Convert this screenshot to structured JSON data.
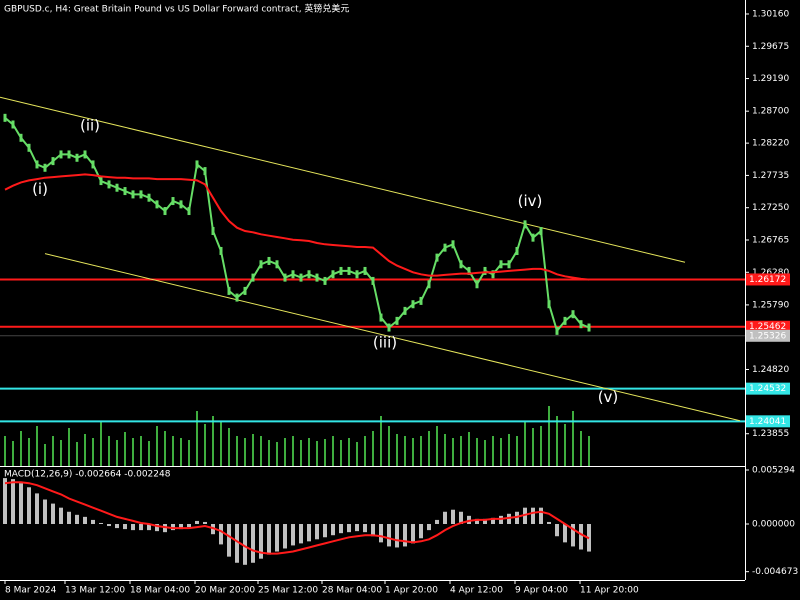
{
  "chart_data": [
    {
      "type": "line",
      "title": "GBPUSD.c, H4:  Great Britain Pound vs US Dollar Forward contract, 英镑兑美元",
      "xlim": [
        -0.625,
        92.5
      ],
      "xticks": [
        {
          "value": 0,
          "label": "8 Mar 2024"
        },
        {
          "value": 7.5,
          "label": "13 Mar 12:00"
        },
        {
          "value": 15.625,
          "label": "18 Mar 04:00"
        },
        {
          "value": 23.75,
          "label": "20 Mar 20:00"
        },
        {
          "value": 31.625,
          "label": "25 Mar 12:00"
        },
        {
          "value": 39.625,
          "label": "28 Mar 04:00"
        },
        {
          "value": 47.5,
          "label": "1 Apr 20:00"
        },
        {
          "value": 55.625,
          "label": "4 Apr 12:00"
        },
        {
          "value": 63.75,
          "label": "9 Apr 04:00"
        },
        {
          "value": 71.875,
          "label": "11 Apr 20:00"
        }
      ],
      "ylim": [
        1.2337,
        1.3037
      ],
      "yticks": [
        {
          "value": 1.3016,
          "label": "1.30160"
        },
        1.29675,
        {
          "value": 1.2919,
          "label": "1.29190"
        },
        {
          "value": 1.287,
          "label": "1.28700"
        },
        {
          "value": 1.2822,
          "label": "1.28220"
        },
        1.27735,
        {
          "value": 1.2725,
          "label": "1.27250"
        },
        1.26765,
        {
          "value": 1.2628,
          "label": "1.26280"
        },
        {
          "value": 1.2579,
          "label": "1.25790"
        },
        {
          "value": 1.2482,
          "label": "1.24820"
        },
        1.23855
      ],
      "series": [
        {
          "color": "#66dd66",
          "values": [
            1.286,
            1.285,
            1.283,
            1.2815,
            1.279,
            1.2785,
            1.2795,
            1.2805,
            1.2805,
            1.28,
            1.2805,
            1.279,
            1.2765,
            1.276,
            1.2755,
            1.275,
            1.2745,
            1.2745,
            1.274,
            1.273,
            1.272,
            1.2735,
            1.273,
            1.272,
            1.279,
            1.278,
            1.269,
            1.266,
            1.26,
            1.259,
            1.26,
            1.262,
            1.264,
            1.2645,
            1.264,
            1.262,
            1.2625,
            1.262,
            1.2625,
            1.262,
            1.2615,
            1.2625,
            1.263,
            1.263,
            1.2625,
            1.263,
            1.2615,
            1.256,
            1.2545,
            1.2555,
            1.257,
            1.258,
            1.2585,
            1.261,
            1.265,
            1.2665,
            1.267,
            1.264,
            1.263,
            1.261,
            1.263,
            1.2625,
            1.264,
            1.264,
            1.266,
            1.27,
            1.268,
            1.269,
            1.258,
            1.254,
            1.2555,
            1.2565,
            1.255,
            1.2545
          ]
        },
        {
          "color": "#ff1a1a",
          "values": [
            1.2752,
            1.2758,
            1.2763,
            1.2766,
            1.2768,
            1.277,
            1.2771,
            1.2772,
            1.2773,
            1.2774,
            1.2775,
            1.2774,
            1.2772,
            1.2771,
            1.277,
            1.277,
            1.2769,
            1.2769,
            1.2769,
            1.2768,
            1.2768,
            1.2768,
            1.2768,
            1.2767,
            1.2766,
            1.276,
            1.274,
            1.272,
            1.2705,
            1.2695,
            1.269,
            1.2688,
            1.2685,
            1.2683,
            1.2681,
            1.2679,
            1.2677,
            1.2676,
            1.2675,
            1.2672,
            1.267,
            1.2669,
            1.2668,
            1.2667,
            1.2666,
            1.2666,
            1.2665,
            1.2655,
            1.2645,
            1.2638,
            1.2633,
            1.2628,
            1.2625,
            1.2623,
            1.2623,
            1.2624,
            1.2625,
            1.2626,
            1.2626,
            1.2627,
            1.2628,
            1.2628,
            1.2629,
            1.263,
            1.2631,
            1.2632,
            1.2633,
            1.2633,
            1.263,
            1.2625,
            1.2622,
            1.262,
            1.2618,
            1.2617
          ]
        }
      ],
      "volume": {
        "color": "#3fae3f",
        "values": [
          30,
          25,
          35,
          28,
          40,
          22,
          30,
          26,
          38,
          24,
          32,
          28,
          45,
          30,
          26,
          34,
          28,
          30,
          25,
          40,
          35,
          30,
          28,
          26,
          55,
          42,
          50,
          45,
          38,
          30,
          28,
          32,
          30,
          26,
          24,
          28,
          30,
          26,
          28,
          25,
          27,
          30,
          26,
          28,
          24,
          30,
          35,
          50,
          40,
          32,
          30,
          28,
          30,
          35,
          40,
          32,
          28,
          30,
          34,
          28,
          26,
          30,
          28,
          32,
          30,
          45,
          38,
          40,
          60,
          50,
          42,
          55,
          35,
          30
        ]
      },
      "trendlines": [
        {
          "color": "#e6e65c",
          "x": [
            -0.625,
            85
          ],
          "y": [
            1.2891,
            1.2643
          ]
        },
        {
          "color": "#e6e65c",
          "x": [
            5,
            91.875
          ],
          "y": [
            1.2656,
            1.2405
          ]
        }
      ],
      "levels": [
        {
          "value": 1.26172,
          "color": "#ff1a1a"
        },
        {
          "value": 1.25462,
          "color": "#ff1a1a"
        },
        {
          "value": 1.24532,
          "color": "#33e6e6"
        },
        {
          "value": 1.24041,
          "color": "#33e6e6"
        }
      ],
      "last_price": {
        "value": 1.25326,
        "color": "#c0c0c0"
      },
      "annotations": [
        {
          "text": "(i)",
          "x": 4.375,
          "y": 1.2752
        },
        {
          "text": "(ii)",
          "x": 10.625,
          "y": 1.2848
        },
        {
          "text": "(iii)",
          "x": 47.5,
          "y": 1.2522
        },
        {
          "text": "(iv)",
          "x": 65.625,
          "y": 1.2734
        },
        {
          "text": "(v)",
          "x": 75.375,
          "y": 1.244
        }
      ]
    },
    {
      "type": "bar",
      "title": "MACD(12,26,9) -0.002664 -0.002248",
      "xlim": [
        -0.625,
        92.5
      ],
      "ylim": [
        -0.00549,
        0.00549
      ],
      "yticks": [
        0.005294,
        {
          "value": 0,
          "label": "0.000000"
        },
        -0.004673
      ],
      "series": [
        {
          "color": "#c0c0c0",
          "values": [
            0.0045,
            0.0044,
            0.004,
            0.0036,
            0.003,
            0.0024,
            0.002,
            0.0016,
            0.0012,
            0.0009,
            0.0007,
            0.0004,
            0.0001,
            -0.0002,
            -0.0004,
            -0.0005,
            -0.0006,
            -0.0006,
            -0.0006,
            -0.0007,
            -0.0008,
            -0.0006,
            -0.0005,
            -0.0003,
            0.0003,
            0.0002,
            -0.001,
            -0.002,
            -0.0032,
            -0.0038,
            -0.004,
            -0.0038,
            -0.0034,
            -0.003,
            -0.0027,
            -0.0024,
            -0.0021,
            -0.0019,
            -0.0017,
            -0.0015,
            -0.0013,
            -0.0011,
            -0.0009,
            -0.0008,
            -0.0007,
            -0.0008,
            -0.0012,
            -0.0018,
            -0.0022,
            -0.0023,
            -0.0022,
            -0.0019,
            -0.0014,
            -0.0006,
            0.0004,
            0.0012,
            0.0014,
            0.0012,
            0.0008,
            0.0005,
            0.0005,
            0.0006,
            0.0008,
            0.001,
            0.0012,
            0.0016,
            0.0016,
            0.0016,
            0.0002,
            -0.0012,
            -0.0018,
            -0.0022,
            -0.0025,
            -0.0027
          ]
        },
        {
          "color": "#ff1a1a",
          "values": [
            0.004,
            0.0041,
            0.0041,
            0.004,
            0.0038,
            0.0035,
            0.0032,
            0.0029,
            0.0025,
            0.0022,
            0.0019,
            0.0016,
            0.0013,
            0.001,
            0.0007,
            0.0005,
            0.0003,
            0.0001,
            0.0,
            -0.0002,
            -0.0003,
            -0.0004,
            -0.0004,
            -0.0004,
            -0.0003,
            -0.0002,
            -0.0004,
            -0.0007,
            -0.0012,
            -0.0017,
            -0.0022,
            -0.0026,
            -0.0028,
            -0.0029,
            -0.0029,
            -0.0028,
            -0.0027,
            -0.0025,
            -0.0023,
            -0.0021,
            -0.0019,
            -0.0017,
            -0.0015,
            -0.0013,
            -0.0012,
            -0.0011,
            -0.0011,
            -0.0012,
            -0.0014,
            -0.0016,
            -0.0017,
            -0.0018,
            -0.0017,
            -0.0015,
            -0.0011,
            -0.0006,
            -0.0002,
            0.0001,
            0.0003,
            0.0004,
            0.0004,
            0.0005,
            0.0005,
            0.0006,
            0.0007,
            0.0009,
            0.0011,
            0.0012,
            0.001,
            0.0005,
            0.0,
            -0.0005,
            -0.001,
            -0.0014
          ]
        }
      ]
    }
  ]
}
